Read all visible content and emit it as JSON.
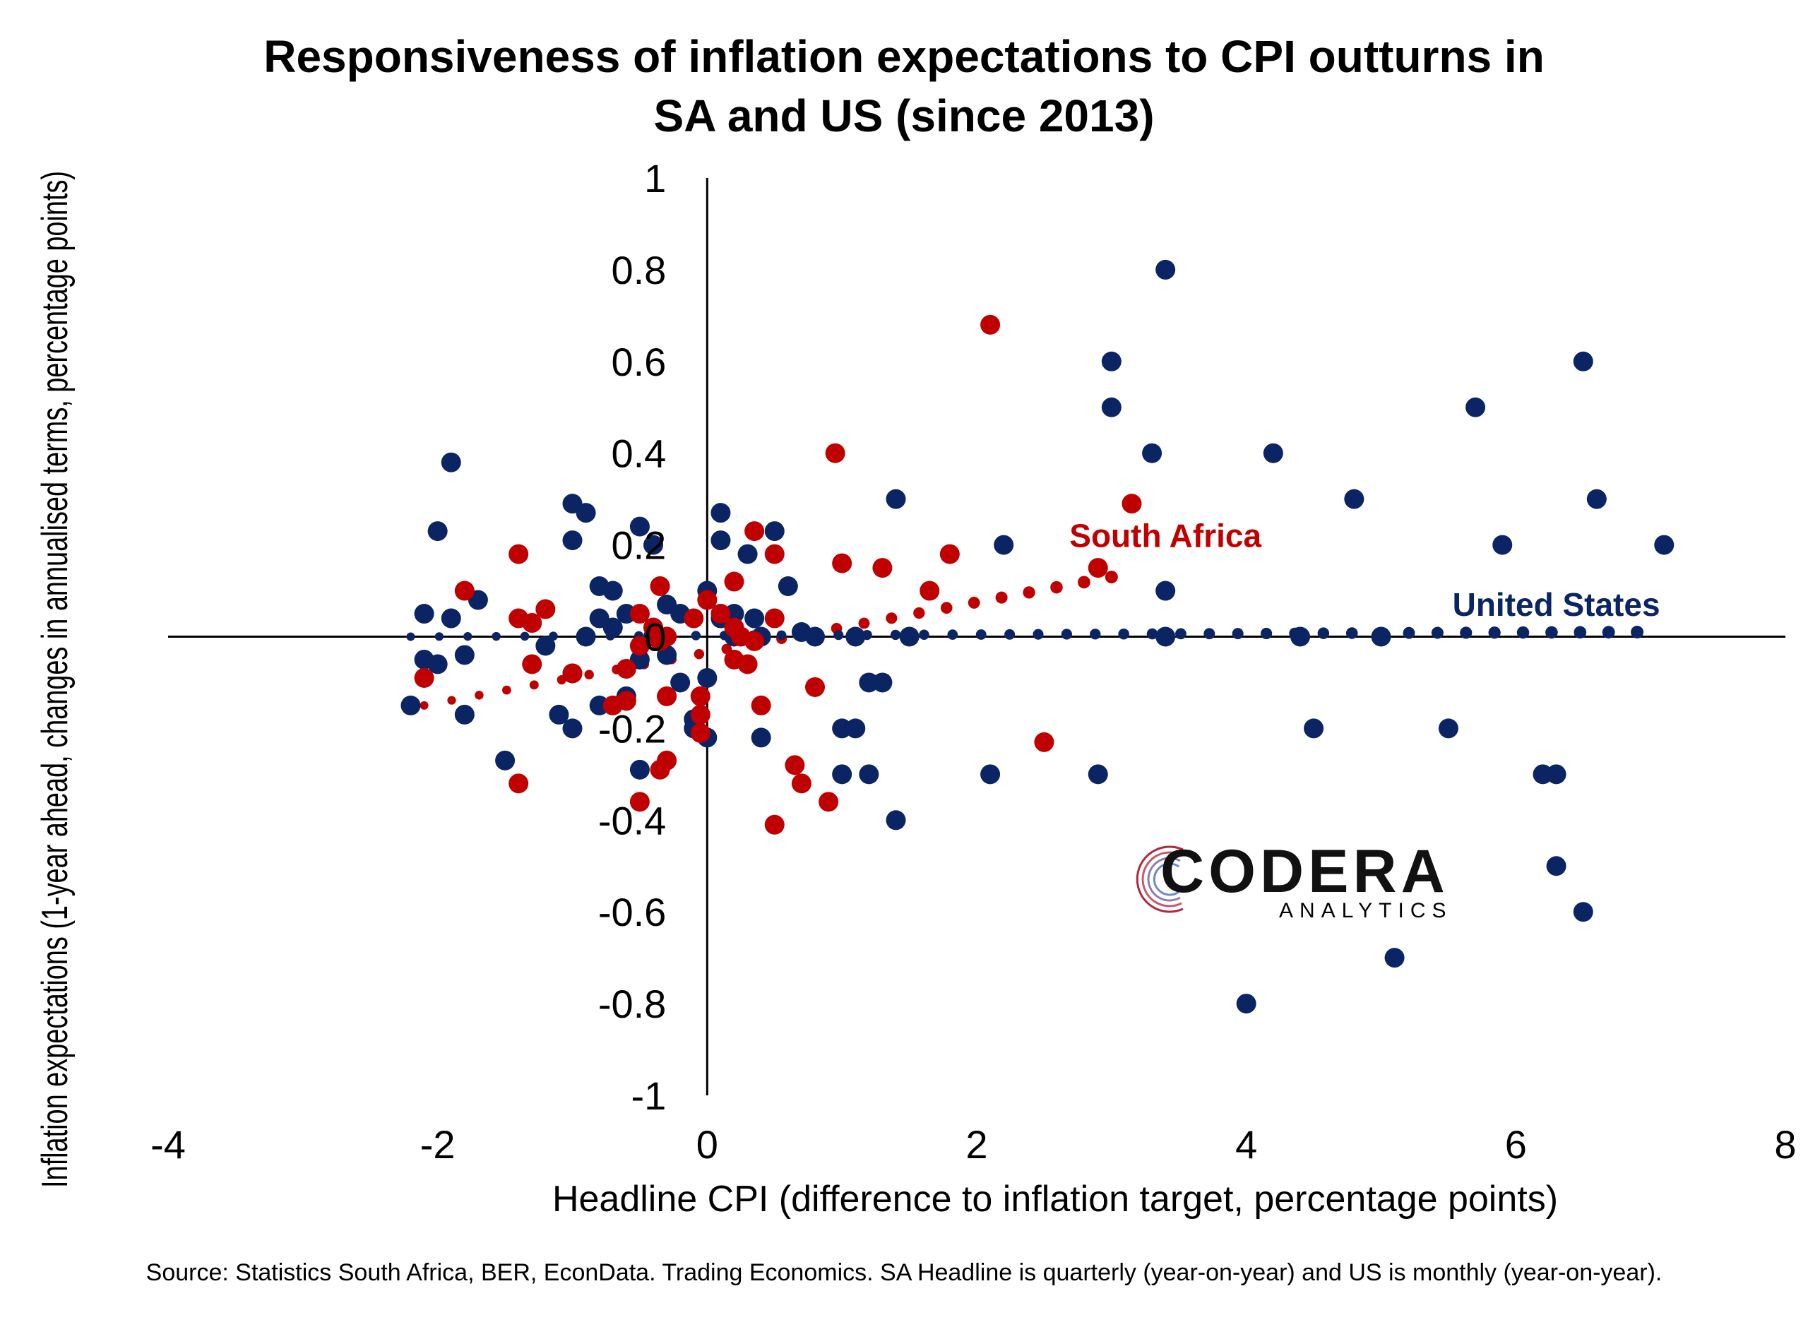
{
  "title_lines": [
    "Responsiveness of inflation expectations to CPI outturns in",
    "SA and US (since 2013)"
  ],
  "source": "Source: Statistics South Africa, BER, EconData. Trading Economics. SA Headline is quarterly (year-on-year) and US is monthly (year-on-year).",
  "logo": {
    "main": "CODERA",
    "sub": "ANALYTICS"
  },
  "colors": {
    "sa": "#c00000",
    "us": "#0b2463",
    "axis": "#000000"
  },
  "chart_data": {
    "type": "scatter",
    "title": "Responsiveness of inflation expectations to CPI outturns in SA and US (since 2013)",
    "xlabel": "Headline CPI (difference to inflation target, percentage points)",
    "ylabel": "Inflation expectations (1-year ahead, changes in annualised terms, percentage points)",
    "xlim": [
      -4,
      8
    ],
    "ylim": [
      -1,
      1
    ],
    "xticks": [
      -4,
      -2,
      0,
      2,
      4,
      6,
      8
    ],
    "xtick_labels": [
      "-4",
      "-2",
      "0",
      "2",
      "4",
      "6",
      "8"
    ],
    "yticks": [
      -1,
      -0.8,
      -0.6,
      -0.4,
      -0.2,
      0,
      0.2,
      0.4,
      0.6,
      0.8,
      1
    ],
    "ytick_labels": [
      "-1",
      "-0.8",
      "-0.6",
      "-0.4",
      "-0.2",
      "0",
      "0.2",
      "0.4",
      "0.6",
      "0.8",
      "1"
    ],
    "grid": false,
    "series": [
      {
        "name": "South Africa",
        "color": "#c00000",
        "points": [
          [
            -2.1,
            -0.09
          ],
          [
            -1.8,
            0.1
          ],
          [
            -1.4,
            0.18
          ],
          [
            -1.4,
            0.04
          ],
          [
            -1.2,
            0.06
          ],
          [
            -1.3,
            0.03
          ],
          [
            -1.3,
            -0.06
          ],
          [
            -1.0,
            -0.08
          ],
          [
            -0.7,
            -0.15
          ],
          [
            -0.6,
            -0.14
          ],
          [
            -0.6,
            -0.07
          ],
          [
            -0.5,
            -0.02
          ],
          [
            -0.5,
            0.05
          ],
          [
            -0.4,
            0.02
          ],
          [
            -0.35,
            0.11
          ],
          [
            -0.35,
            -0.01
          ],
          [
            -0.3,
            -0.13
          ],
          [
            -0.3,
            -0.27
          ],
          [
            -0.35,
            -0.29
          ],
          [
            -0.5,
            -0.36
          ],
          [
            -1.4,
            -0.32
          ],
          [
            -0.3,
            0.0
          ],
          [
            -0.1,
            0.04
          ],
          [
            0.0,
            0.08
          ],
          [
            -0.05,
            -0.13
          ],
          [
            -0.05,
            -0.17
          ],
          [
            -0.05,
            -0.21
          ],
          [
            0.1,
            0.05
          ],
          [
            0.2,
            0.12
          ],
          [
            0.2,
            0.02
          ],
          [
            0.25,
            0.0
          ],
          [
            0.3,
            -0.06
          ],
          [
            0.35,
            -0.01
          ],
          [
            0.35,
            0.23
          ],
          [
            0.5,
            0.18
          ],
          [
            0.5,
            0.04
          ],
          [
            0.4,
            -0.15
          ],
          [
            0.65,
            -0.28
          ],
          [
            0.7,
            -0.32
          ],
          [
            0.8,
            -0.11
          ],
          [
            0.9,
            -0.36
          ],
          [
            0.95,
            0.4
          ],
          [
            1.0,
            0.16
          ],
          [
            1.3,
            0.15
          ],
          [
            1.65,
            0.1
          ],
          [
            1.8,
            0.18
          ],
          [
            2.1,
            0.68
          ],
          [
            2.5,
            -0.23
          ],
          [
            2.9,
            0.15
          ],
          [
            3.15,
            0.29
          ],
          [
            0.5,
            -0.41
          ],
          [
            0.2,
            -0.05
          ]
        ],
        "trend": {
          "x0": -2.1,
          "x1": 3.0,
          "y0": -0.15,
          "y1": 0.13
        }
      },
      {
        "name": "United States",
        "color": "#0b2463",
        "points": [
          [
            -1.9,
            0.38
          ],
          [
            -2.0,
            0.23
          ],
          [
            -2.1,
            0.05
          ],
          [
            -1.9,
            0.04
          ],
          [
            -2.1,
            -0.05
          ],
          [
            -2.0,
            -0.06
          ],
          [
            -2.2,
            -0.15
          ],
          [
            -1.8,
            -0.17
          ],
          [
            -1.8,
            -0.04
          ],
          [
            -1.7,
            0.08
          ],
          [
            -1.5,
            -0.27
          ],
          [
            -1.2,
            -0.02
          ],
          [
            -1.1,
            -0.17
          ],
          [
            -1.0,
            -0.2
          ],
          [
            -1.0,
            -0.08
          ],
          [
            -1.0,
            0.21
          ],
          [
            -1.0,
            0.29
          ],
          [
            -0.9,
            0.27
          ],
          [
            -0.8,
            0.11
          ],
          [
            -0.8,
            0.04
          ],
          [
            -0.7,
            0.1
          ],
          [
            -0.7,
            0.02
          ],
          [
            -0.8,
            -0.15
          ],
          [
            -0.6,
            -0.13
          ],
          [
            -0.5,
            -0.29
          ],
          [
            -0.5,
            0.24
          ],
          [
            -0.4,
            0.2
          ],
          [
            -0.3,
            0.07
          ],
          [
            -0.3,
            -0.04
          ],
          [
            -0.2,
            -0.1
          ],
          [
            -0.1,
            -0.2
          ],
          [
            -0.1,
            -0.18
          ],
          [
            0.0,
            -0.22
          ],
          [
            0.0,
            -0.09
          ],
          [
            0.0,
            0.1
          ],
          [
            0.1,
            0.27
          ],
          [
            0.1,
            0.21
          ],
          [
            0.1,
            0.04
          ],
          [
            0.2,
            0.05
          ],
          [
            0.3,
            0.18
          ],
          [
            0.35,
            0.04
          ],
          [
            0.4,
            -0.22
          ],
          [
            0.5,
            0.23
          ],
          [
            0.6,
            0.11
          ],
          [
            0.7,
            0.01
          ],
          [
            0.8,
            0.0
          ],
          [
            1.0,
            -0.2
          ],
          [
            1.1,
            -0.2
          ],
          [
            1.0,
            -0.3
          ],
          [
            1.2,
            -0.3
          ],
          [
            1.2,
            -0.1
          ],
          [
            1.3,
            -0.1
          ],
          [
            1.4,
            -0.4
          ],
          [
            1.4,
            0.3
          ],
          [
            1.5,
            0.0
          ],
          [
            2.1,
            -0.3
          ],
          [
            2.2,
            0.2
          ],
          [
            2.9,
            -0.3
          ],
          [
            3.0,
            0.6
          ],
          [
            3.0,
            0.5
          ],
          [
            3.3,
            0.4
          ],
          [
            3.4,
            0.8
          ],
          [
            3.4,
            0.1
          ],
          [
            3.4,
            0.0
          ],
          [
            4.0,
            -0.8
          ],
          [
            4.2,
            0.4
          ],
          [
            4.4,
            0.0
          ],
          [
            4.5,
            -0.2
          ],
          [
            4.8,
            0.3
          ],
          [
            5.0,
            0.0
          ],
          [
            5.1,
            -0.7
          ],
          [
            5.5,
            -0.2
          ],
          [
            5.7,
            0.5
          ],
          [
            5.9,
            0.2
          ],
          [
            6.2,
            -0.3
          ],
          [
            6.3,
            -0.3
          ],
          [
            6.3,
            -0.5
          ],
          [
            6.5,
            -0.6
          ],
          [
            6.5,
            0.6
          ],
          [
            6.6,
            0.3
          ],
          [
            7.1,
            0.2
          ],
          [
            -0.6,
            0.05
          ],
          [
            -0.5,
            -0.05
          ],
          [
            -0.2,
            0.05
          ],
          [
            0.2,
            0.0
          ],
          [
            -0.9,
            0.0
          ],
          [
            -0.4,
            0.0
          ],
          [
            0.4,
            0.0
          ],
          [
            1.1,
            0.0
          ]
        ],
        "trend": {
          "x0": -2.2,
          "x1": 6.9,
          "y0": 0.0,
          "y1": 0.01
        }
      }
    ],
    "annotations": [
      {
        "text": "South Africa",
        "series": "South Africa",
        "x": 3.4,
        "y": 0.22
      },
      {
        "text": "United States",
        "series": "United States",
        "x": 6.3,
        "y": 0.07
      }
    ]
  }
}
